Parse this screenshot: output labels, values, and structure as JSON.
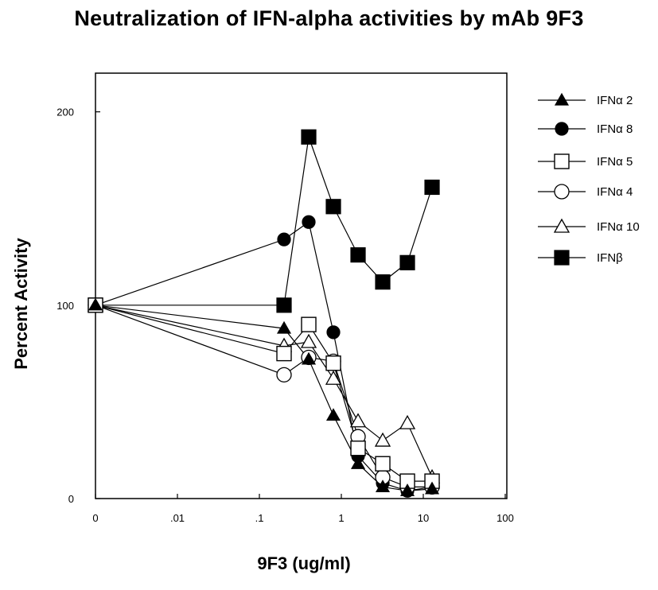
{
  "chart_data": {
    "type": "line",
    "title": "Neutralization of IFN-alpha activities by mAb 9F3",
    "xlabel": "9F3 (ug/ml)",
    "ylabel": "Percent Activity",
    "x_scale": "log",
    "x_ticks": [
      {
        "value": 0,
        "label": "0"
      },
      {
        "value": 0.01,
        "label": ".01"
      },
      {
        "value": 0.1,
        "label": ".1"
      },
      {
        "value": 1,
        "label": "1"
      },
      {
        "value": 10,
        "label": "10"
      },
      {
        "value": 100,
        "label": "100"
      }
    ],
    "y_ticks": [
      {
        "value": 0,
        "label": "0"
      },
      {
        "value": 100,
        "label": "100"
      },
      {
        "value": 200,
        "label": "200"
      }
    ],
    "ylim": [
      0,
      220
    ],
    "grid": false,
    "legend_position": "right",
    "x": [
      0,
      0.2,
      0.4,
      0.8,
      1.6,
      3.2,
      6.4,
      12.8
    ],
    "series": [
      {
        "name": "IFNα 2",
        "marker": "filled-triangle",
        "values": [
          100,
          88,
          72,
          43,
          18,
          6,
          4,
          5
        ]
      },
      {
        "name": "IFNα 8",
        "marker": "filled-circle",
        "values": [
          100,
          134,
          143,
          86,
          22,
          8,
          4,
          6
        ]
      },
      {
        "name": "IFNα 5",
        "marker": "open-square",
        "values": [
          100,
          75,
          90,
          70,
          26,
          18,
          9,
          9
        ]
      },
      {
        "name": "IFNα 4",
        "marker": "open-circle",
        "values": [
          100,
          64,
          73,
          71,
          32,
          11,
          6,
          6
        ]
      },
      {
        "name": "IFNα 10",
        "marker": "open-triangle",
        "values": [
          100,
          79,
          81,
          62,
          40,
          30,
          39,
          11
        ]
      },
      {
        "name": "IFNβ",
        "marker": "filled-square",
        "values": [
          100,
          100,
          187,
          151,
          126,
          112,
          122,
          161
        ]
      }
    ]
  }
}
